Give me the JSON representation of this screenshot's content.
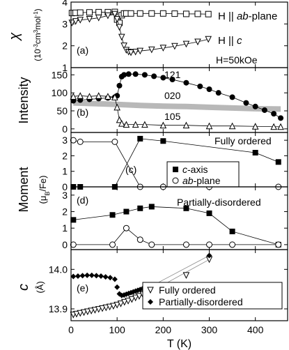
{
  "chart_data": [
    {
      "panel_label": "(a)",
      "type": "line",
      "ylabel": "χ",
      "ylabel_unit": [
        "(10",
        "-3",
        "cm",
        "3",
        "mol",
        "-1",
        ")"
      ],
      "annotation": "H=50kOe",
      "ylim": [
        1,
        4
      ],
      "yticks": [
        "1",
        "2",
        "3",
        "4"
      ],
      "series": [
        {
          "name_parts": [
            "H || ",
            "ab",
            "-plane"
          ],
          "marker": "square-open",
          "x": [
            2,
            10,
            20,
            40,
            60,
            80,
            95,
            100,
            105,
            110,
            115,
            120,
            130,
            150,
            175,
            200,
            225,
            250,
            275,
            298
          ],
          "y": [
            3.5,
            3.51,
            3.52,
            3.53,
            3.54,
            3.54,
            3.55,
            3.2,
            3.05,
            3.4,
            3.48,
            3.48,
            3.48,
            3.48,
            3.48,
            3.48,
            3.47,
            3.46,
            3.46,
            3.45
          ]
        },
        {
          "name_parts": [
            "H || ",
            "c"
          ],
          "marker": "triangle-down-open",
          "x": [
            2,
            10,
            20,
            40,
            60,
            80,
            95,
            100,
            105,
            110,
            115,
            120,
            125,
            130,
            140,
            150,
            175,
            200,
            225,
            250,
            275,
            298
          ],
          "y": [
            3.05,
            3.12,
            3.18,
            3.22,
            3.28,
            3.38,
            3.45,
            3.22,
            2.85,
            2.4,
            2.0,
            1.8,
            1.72,
            1.69,
            1.72,
            1.76,
            1.82,
            1.9,
            1.98,
            2.08,
            2.18,
            2.3
          ]
        }
      ]
    },
    {
      "panel_label": "(b)",
      "type": "line",
      "ylabel": "Intensity",
      "ylim": [
        -10,
        170
      ],
      "yticks": [
        "0",
        "50",
        "100",
        "150"
      ],
      "series": [
        {
          "name": "121",
          "marker": "circle-filled",
          "x": [
            5,
            20,
            40,
            60,
            80,
            95,
            100,
            105,
            110,
            115,
            125,
            140,
            160,
            180,
            200,
            220,
            250,
            280,
            300,
            320,
            350,
            380,
            400,
            420,
            440,
            455
          ],
          "y": [
            78,
            80,
            82,
            84,
            86,
            88,
            92,
            120,
            145,
            150,
            152,
            152,
            150,
            146,
            142,
            137,
            128,
            118,
            110,
            100,
            88,
            72,
            62,
            52,
            42,
            30
          ]
        },
        {
          "name": "020",
          "marker": "gray-band",
          "x": [
            5,
            50,
            100,
            150,
            200,
            250,
            300,
            350,
            400,
            455
          ],
          "y": [
            72,
            70,
            68,
            65,
            63,
            62,
            60,
            58,
            56,
            55
          ]
        },
        {
          "name": "105",
          "marker": "triangle-up-open",
          "x": [
            5,
            20,
            40,
            60,
            80,
            95,
            100,
            105,
            110,
            120,
            140,
            160,
            200,
            250,
            300,
            350,
            400,
            440,
            455
          ],
          "y": [
            90,
            92,
            90,
            92,
            90,
            88,
            60,
            25,
            15,
            12,
            12,
            12,
            10,
            10,
            8,
            8,
            7,
            6,
            6
          ]
        }
      ]
    },
    {
      "panel_label": "(c)",
      "type": "line",
      "annotation": "Fully ordered",
      "ylim": [
        0,
        3.5
      ],
      "yticks": [
        "0",
        "1",
        "2",
        "3"
      ],
      "series": [
        {
          "name": "c-axis",
          "name_parts": [
            "c",
            "-axis"
          ],
          "marker": "square-filled",
          "x": [
            5,
            20,
            95,
            150,
            200,
            400,
            450
          ],
          "y": [
            0,
            0,
            0,
            3.1,
            2.95,
            2.2,
            1.6
          ]
        },
        {
          "name": "ab-plane",
          "name_parts": [
            "ab",
            "-plane"
          ],
          "marker": "circle-open",
          "x": [
            5,
            20,
            95,
            150,
            200,
            300,
            450
          ],
          "y": [
            3.0,
            2.9,
            2.9,
            0,
            0,
            0,
            0
          ]
        }
      ]
    },
    {
      "panel_label": "(d)",
      "type": "line",
      "annotation": "Partially-disordered",
      "ylim": [
        -0.3,
        3.5
      ],
      "yticks": [
        "0",
        "1",
        "2",
        "3"
      ],
      "series": [
        {
          "name": "c-axis",
          "marker": "square-filled",
          "x": [
            5,
            90,
            120,
            150,
            175,
            250,
            300,
            350,
            450
          ],
          "y": [
            1.5,
            1.8,
            2.0,
            2.2,
            2.3,
            2.2,
            1.9,
            0.8,
            0
          ]
        },
        {
          "name": "ab-plane",
          "marker": "circle-open",
          "x": [
            5,
            90,
            120,
            150,
            175,
            250,
            300,
            350,
            450
          ],
          "y": [
            0,
            0,
            1.0,
            0.3,
            0,
            0,
            0,
            0,
            0
          ]
        }
      ]
    },
    {
      "panel_label": "(e)",
      "type": "scatter",
      "ylabel": "c",
      "ylabel_unit": "(Å)",
      "ylim": [
        13.87,
        14.05
      ],
      "yticks": [
        "13.9",
        "14.0"
      ],
      "xlabel": "T (K)",
      "xlim": [
        0,
        470
      ],
      "xticks": [
        "0",
        "100",
        "200",
        "300",
        "400"
      ],
      "series": [
        {
          "name": "Fully ordered",
          "marker": "triangle-down-open",
          "x": [
            5,
            12,
            20,
            28,
            36,
            44,
            52,
            60,
            68,
            76,
            84,
            92,
            100,
            108,
            116,
            124,
            132,
            140,
            148,
            156,
            164,
            172,
            180,
            200,
            250,
            300
          ],
          "y": [
            13.885,
            13.887,
            13.889,
            13.891,
            13.893,
            13.895,
            13.897,
            13.899,
            13.901,
            13.903,
            13.905,
            13.907,
            13.91,
            13.913,
            13.917,
            13.92,
            13.924,
            13.928,
            13.932,
            13.936,
            13.94,
            13.944,
            13.948,
            13.96,
            13.985,
            14.025
          ]
        },
        {
          "name": "Partially-disordered",
          "marker": "diamond-filled",
          "x": [
            5,
            15,
            25,
            35,
            45,
            55,
            65,
            75,
            85,
            95,
            100,
            105,
            110,
            115,
            120,
            125,
            130,
            135,
            140,
            145,
            150,
            155,
            160,
            165,
            170,
            175,
            180,
            300
          ],
          "y": [
            13.982,
            13.983,
            13.984,
            13.985,
            13.985,
            13.984,
            13.983,
            13.981,
            13.979,
            13.975,
            13.955,
            13.938,
            13.934,
            13.935,
            13.937,
            13.939,
            13.941,
            13.943,
            13.945,
            13.947,
            13.949,
            13.951,
            13.953,
            13.955,
            13.957,
            13.959,
            13.961,
            14.035
          ]
        }
      ]
    }
  ]
}
